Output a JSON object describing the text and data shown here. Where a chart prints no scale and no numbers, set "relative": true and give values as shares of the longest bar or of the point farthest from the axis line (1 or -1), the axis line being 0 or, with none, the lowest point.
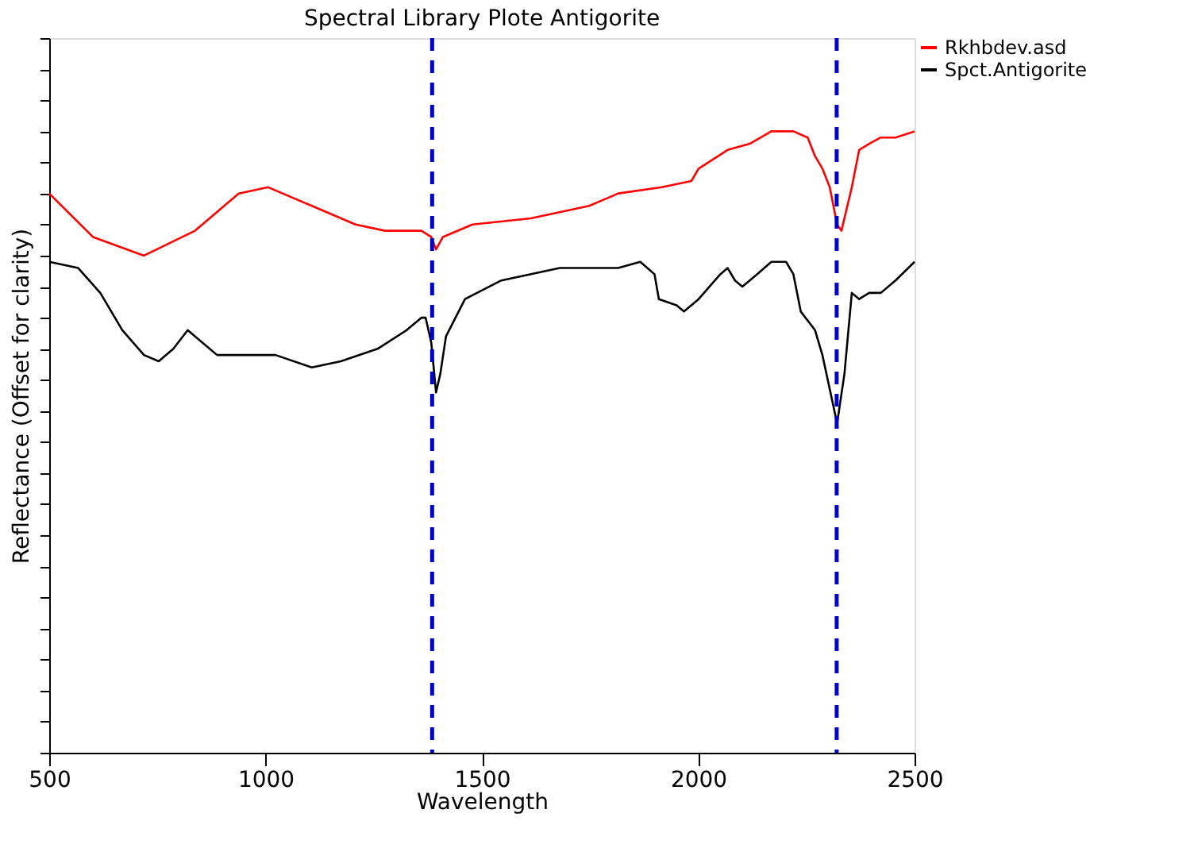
{
  "chart_data": {
    "type": "line",
    "title": "Spectral Library Plote Antigorite",
    "xlabel": "Wavelength",
    "ylabel": "Reflectance (Offset for clarity)",
    "relative": true,
    "xlim": [
      500,
      2500
    ],
    "xticks": [
      500,
      1000,
      1500,
      2000,
      2500
    ],
    "legend": "top right",
    "grid": false,
    "line_style": "solid",
    "marker": "none",
    "tick_labels": "x",
    "series": [
      {
        "name": "Rkhbdev.asd",
        "color": "#ff0000",
        "x": [
          500,
          601,
          719,
          837,
          938,
          1006,
          1107,
          1208,
          1276,
          1343,
          1360,
          1383,
          1394,
          1410,
          1478,
          1613,
          1748,
          1815,
          1916,
          1984,
          2001,
          2068,
          2119,
          2169,
          2220,
          2253,
          2270,
          2287,
          2304,
          2321,
          2331,
          2355,
          2372,
          2395,
          2422,
          2456,
          2500
        ],
        "values": [
          0.9,
          0.83,
          0.8,
          0.84,
          0.9,
          0.91,
          0.88,
          0.85,
          0.84,
          0.84,
          0.84,
          0.83,
          0.81,
          0.83,
          0.85,
          0.86,
          0.88,
          0.9,
          0.91,
          0.92,
          0.94,
          0.97,
          0.98,
          1.0,
          1.0,
          0.99,
          0.96,
          0.94,
          0.91,
          0.85,
          0.84,
          0.91,
          0.97,
          0.98,
          0.99,
          0.99,
          1.0
        ]
      },
      {
        "name": "Spct.Antigorite",
        "color": "#000000",
        "x": [
          500,
          567,
          618,
          669,
          719,
          753,
          787,
          820,
          854,
          888,
          922,
          972,
          1023,
          1107,
          1174,
          1259,
          1326,
          1360,
          1370,
          1383,
          1394,
          1404,
          1417,
          1461,
          1545,
          1680,
          1815,
          1866,
          1899,
          1909,
          1950,
          1967,
          2001,
          2051,
          2068,
          2085,
          2102,
          2136,
          2169,
          2203,
          2220,
          2237,
          2270,
          2287,
          2321,
          2338,
          2355,
          2372,
          2395,
          2422,
          2456,
          2500
        ],
        "values": [
          0.79,
          0.78,
          0.74,
          0.68,
          0.64,
          0.63,
          0.65,
          0.68,
          0.66,
          0.64,
          0.64,
          0.64,
          0.64,
          0.62,
          0.63,
          0.65,
          0.68,
          0.7,
          0.7,
          0.66,
          0.58,
          0.61,
          0.67,
          0.73,
          0.76,
          0.78,
          0.78,
          0.79,
          0.77,
          0.73,
          0.72,
          0.71,
          0.73,
          0.77,
          0.78,
          0.76,
          0.75,
          0.77,
          0.79,
          0.79,
          0.77,
          0.71,
          0.68,
          0.64,
          0.53,
          0.61,
          0.74,
          0.73,
          0.74,
          0.74,
          0.76,
          0.79
        ]
      }
    ],
    "ref_lines": [
      {
        "axis": "x",
        "value": 1385,
        "color": "#0000cc",
        "line_style": "dashed"
      },
      {
        "axis": "x",
        "value": 2320,
        "color": "#0000cc",
        "line_style": "dashed"
      }
    ]
  }
}
